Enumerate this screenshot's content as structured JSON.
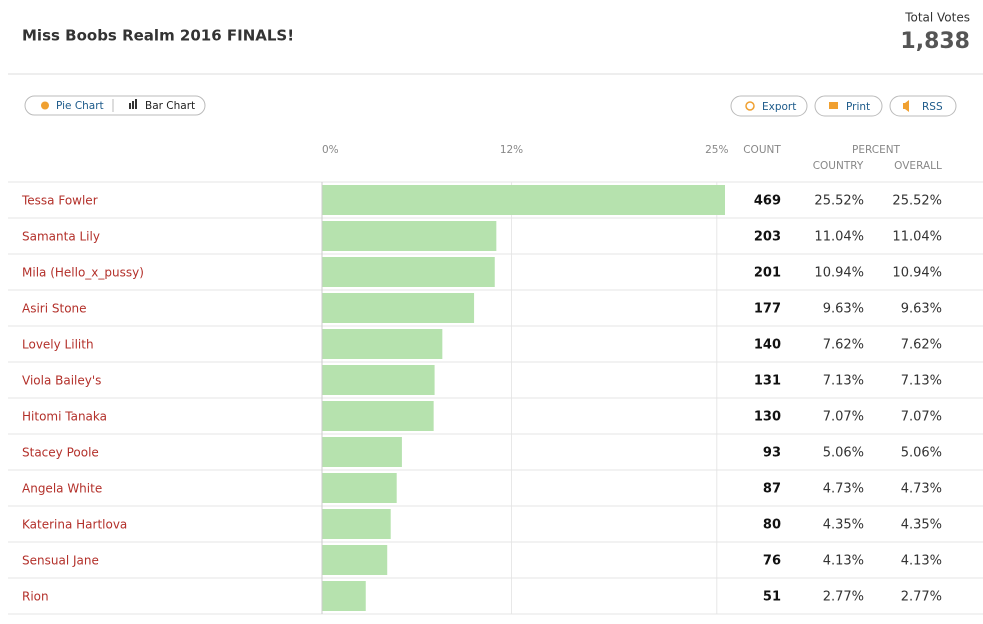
{
  "header": {
    "title": "Miss Boobs Realm 2016 FINALS!",
    "total_label": "Total Votes",
    "total": "1,838"
  },
  "toolbar": {
    "views": [
      "Pie Chart",
      "Bar Chart"
    ],
    "actions": [
      "Export",
      "Print",
      "RSS"
    ]
  },
  "columns": {
    "count": "COUNT",
    "percent": "PERCENT",
    "country": "COUNTRY",
    "overall": "OVERALL"
  },
  "chart_data": {
    "type": "bar",
    "categories": [
      "Tessa Fowler",
      "Samanta Lily",
      "Mila (Hello_x_pussy)",
      "Asiri Stone",
      "Lovely Lilith",
      "Viola Bailey's",
      "Hitomi Tanaka",
      "Stacey Poole",
      "Angela White",
      "Katerina Hartlova",
      "Sensual Jane",
      "Rion"
    ],
    "values": [
      25.52,
      11.04,
      10.94,
      9.63,
      7.62,
      7.13,
      7.07,
      5.06,
      4.73,
      4.35,
      4.13,
      2.77
    ],
    "value_labels": [
      "25.52%",
      "11.04%",
      "10.94%",
      "9.63%",
      "7.62%",
      "7.13%",
      "7.07%",
      "5.06%",
      "4.73%",
      "4.35%",
      "4.13%",
      "2.77%"
    ],
    "country_labels": [
      "25.52%",
      "11.04%",
      "10.94%",
      "9.63%",
      "7.62%",
      "7.13%",
      "7.07%",
      "5.06%",
      "4.73%",
      "4.35%",
      "4.13%",
      "2.77%"
    ],
    "counts": [
      469,
      203,
      201,
      177,
      140,
      131,
      130,
      93,
      87,
      80,
      76,
      51
    ],
    "xlim": [
      0,
      25.52
    ],
    "xticks": [
      {
        "value": 0,
        "label": "0%"
      },
      {
        "value": 12,
        "label": "12%"
      },
      {
        "value": 25,
        "label": "25%"
      }
    ],
    "color": "#b6e2ae"
  }
}
